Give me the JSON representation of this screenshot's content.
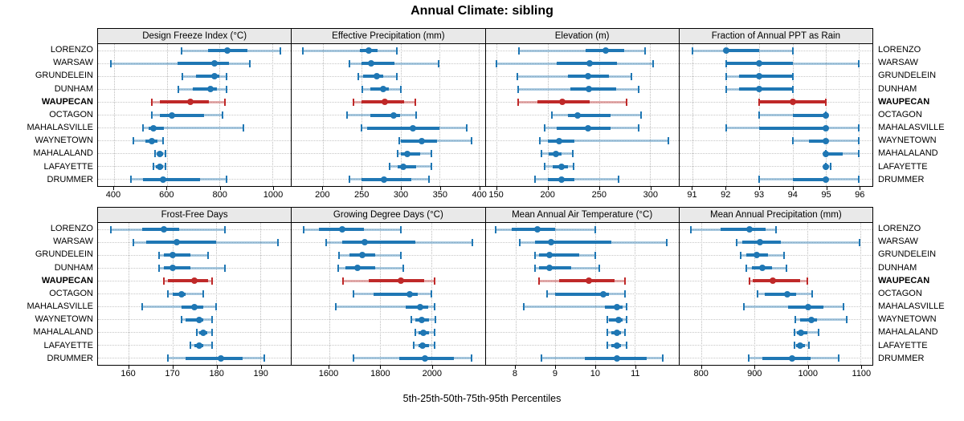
{
  "title": "Annual Climate: sibling",
  "footer": "5th-25th-50th-75th-95th Percentiles",
  "row_labels": [
    "LORENZO",
    "WARSAW",
    "GRUNDELEIN",
    "DUNHAM",
    "WAUPECAN",
    "OCTAGON",
    "MAHALASVILLE",
    "WAYNETOWN",
    "MAHALALAND",
    "LAFAYETTE",
    "DRUMMER"
  ],
  "highlight_row": "WAUPECAN",
  "colors": {
    "series": "#1f77b4",
    "highlight": "#bf2929",
    "header_bg": "#e9e9e9",
    "grid": "#c6c6c6"
  },
  "percentile_levels": [
    5,
    25,
    50,
    75,
    95
  ],
  "chart_data": [
    {
      "type": "dotplot-percentiles",
      "title": "Design Freeze Index (°C)",
      "grid_row": 0,
      "grid_col": 0,
      "xlim": [
        340,
        1070
      ],
      "ticks": [
        400,
        600,
        800,
        1000
      ],
      "tick_labels": [
        "400",
        "600",
        "800",
        "1000"
      ],
      "values": [
        [
          655,
          755,
          830,
          905,
          1030
        ],
        [
          390,
          640,
          780,
          835,
          915
        ],
        [
          660,
          710,
          780,
          800,
          825
        ],
        [
          645,
          700,
          765,
          790,
          825
        ],
        [
          545,
          575,
          690,
          760,
          820
        ],
        [
          545,
          575,
          620,
          740,
          810
        ],
        [
          510,
          530,
          550,
          590,
          890
        ],
        [
          475,
          520,
          545,
          565,
          585
        ],
        [
          555,
          565,
          575,
          585,
          595
        ],
        [
          550,
          560,
          575,
          585,
          595
        ],
        [
          465,
          510,
          585,
          725,
          825
        ]
      ]
    },
    {
      "type": "dotplot-percentiles",
      "title": "Effective Precipitation (mm)",
      "grid_row": 0,
      "grid_col": 1,
      "xlim": [
        160,
        408
      ],
      "ticks": [
        200,
        250,
        300,
        350,
        400
      ],
      "tick_labels": [
        "200",
        "250",
        "300",
        "350",
        "400"
      ],
      "values": [
        [
          174,
          247,
          259,
          270,
          295
        ],
        [
          234,
          250,
          262,
          292,
          349
        ],
        [
          245,
          252,
          269,
          277,
          295
        ],
        [
          251,
          261,
          277,
          285,
          300
        ],
        [
          239,
          250,
          279,
          304,
          319
        ],
        [
          231,
          261,
          291,
          299,
          320
        ],
        [
          250,
          257,
          316,
          350,
          385
        ],
        [
          298,
          300,
          327,
          347,
          391
        ],
        [
          296,
          300,
          308,
          325,
          339
        ],
        [
          286,
          296,
          303,
          320,
          339
        ],
        [
          234,
          250,
          278,
          314,
          336
        ]
      ]
    },
    {
      "type": "dotplot-percentiles",
      "title": "Elevation (m)",
      "grid_row": 0,
      "grid_col": 2,
      "xlim": [
        139,
        328
      ],
      "ticks": [
        150,
        200,
        250,
        300
      ],
      "tick_labels": [
        "150",
        "200",
        "250",
        "300"
      ],
      "values": [
        [
          172,
          237,
          257,
          275,
          295
        ],
        [
          150,
          209,
          241,
          268,
          303
        ],
        [
          170,
          220,
          239,
          260,
          282
        ],
        [
          171,
          222,
          240,
          267,
          289
        ],
        [
          171,
          190,
          214,
          241,
          277
        ],
        [
          204,
          220,
          229,
          261,
          291
        ],
        [
          197,
          209,
          239,
          261,
          289
        ],
        [
          192,
          200,
          211,
          226,
          318
        ],
        [
          194,
          201,
          208,
          213,
          224
        ],
        [
          197,
          205,
          213,
          220,
          225
        ],
        [
          187,
          200,
          213,
          226,
          269
        ]
      ]
    },
    {
      "type": "dotplot-percentiles",
      "title": "Fraction of Annual PPT as Rain",
      "grid_row": 0,
      "grid_col": 3,
      "xlim": [
        90.6,
        96.4
      ],
      "ticks": [
        91,
        92,
        93,
        94,
        95,
        96
      ],
      "tick_labels": [
        "91",
        "92",
        "93",
        "94",
        "95",
        "96"
      ],
      "values": [
        [
          91,
          92,
          92,
          93,
          94
        ],
        [
          92,
          92,
          93,
          94,
          96
        ],
        [
          92,
          92.4,
          93,
          94,
          94
        ],
        [
          92,
          92.4,
          93,
          94,
          94
        ],
        [
          93,
          93,
          94,
          95,
          95
        ],
        [
          93,
          94,
          95,
          95,
          95
        ],
        [
          92,
          93,
          95,
          95,
          96
        ],
        [
          94,
          94.5,
          95,
          95,
          96
        ],
        [
          95,
          95,
          95,
          95.5,
          96
        ],
        [
          95,
          95,
          95,
          95,
          95.15
        ],
        [
          93,
          94,
          95,
          95,
          96
        ]
      ]
    },
    {
      "type": "dotplot-percentiles",
      "title": "Frost-Free Days",
      "grid_row": 1,
      "grid_col": 0,
      "xlim": [
        153,
        197
      ],
      "ticks": [
        160,
        170,
        180,
        190
      ],
      "tick_labels": [
        "160",
        "170",
        "180",
        "190"
      ],
      "values": [
        [
          156,
          163,
          168,
          171.5,
          182
        ],
        [
          161,
          164,
          171,
          180,
          194
        ],
        [
          167,
          168,
          170,
          174,
          178
        ],
        [
          167,
          168,
          170,
          174,
          182
        ],
        [
          168,
          169,
          175,
          178,
          179
        ],
        [
          169,
          170,
          172,
          173,
          177
        ],
        [
          163,
          172,
          175,
          177,
          180
        ],
        [
          172,
          173,
          176,
          177,
          179
        ],
        [
          175.5,
          176,
          177,
          178,
          179
        ],
        [
          174,
          175,
          176,
          177,
          179
        ],
        [
          169,
          173,
          181,
          186,
          191
        ]
      ]
    },
    {
      "type": "dotplot-percentiles",
      "title": "Growing Degree Days (°C)",
      "grid_row": 1,
      "grid_col": 1,
      "xlim": [
        1455,
        2207
      ],
      "ticks": [
        1600,
        1800,
        2000
      ],
      "tick_labels": [
        "1600",
        "1800",
        "2000"
      ],
      "values": [
        [
          1500,
          1560,
          1650,
          1735,
          1880
        ],
        [
          1590,
          1650,
          1740,
          1935,
          2160
        ],
        [
          1640,
          1680,
          1730,
          1780,
          1880
        ],
        [
          1635,
          1665,
          1710,
          1780,
          1890
        ],
        [
          1655,
          1755,
          1880,
          1970,
          2010
        ],
        [
          1695,
          1775,
          1915,
          1945,
          2000
        ],
        [
          1625,
          1900,
          1955,
          1985,
          2010
        ],
        [
          1920,
          1935,
          1960,
          1990,
          2015
        ],
        [
          1937,
          1950,
          1968,
          1990,
          2010
        ],
        [
          1930,
          1950,
          1965,
          1990,
          2010
        ],
        [
          1695,
          1875,
          1975,
          2085,
          2155
        ]
      ]
    },
    {
      "type": "dotplot-percentiles",
      "title": "Mean Annual Air Temperature (°C)",
      "grid_row": 1,
      "grid_col": 2,
      "xlim": [
        7.25,
        12.1
      ],
      "ticks": [
        8,
        9,
        10,
        11
      ],
      "tick_labels": [
        "8",
        "9",
        "10",
        "11"
      ],
      "values": [
        [
          7.5,
          7.9,
          8.55,
          9.0,
          10.0
        ],
        [
          8.1,
          8.5,
          8.9,
          10.4,
          11.8
        ],
        [
          8.5,
          8.6,
          8.85,
          9.6,
          10.0
        ],
        [
          8.5,
          8.6,
          8.85,
          9.4,
          10.1
        ],
        [
          8.6,
          9.1,
          9.85,
          10.5,
          10.75
        ],
        [
          8.8,
          9.0,
          10.2,
          10.35,
          10.75
        ],
        [
          8.2,
          10.25,
          10.55,
          10.7,
          10.8
        ],
        [
          10.3,
          10.35,
          10.6,
          10.7,
          10.8
        ],
        [
          10.3,
          10.4,
          10.55,
          10.65,
          10.75
        ],
        [
          10.3,
          10.4,
          10.55,
          10.65,
          10.8
        ],
        [
          8.65,
          9.75,
          10.55,
          11.3,
          11.7
        ]
      ]
    },
    {
      "type": "dotplot-percentiles",
      "title": "Mean Annual Precipitation (mm)",
      "grid_row": 1,
      "grid_col": 3,
      "xlim": [
        758,
        1122
      ],
      "ticks": [
        800,
        900,
        1000,
        1100
      ],
      "tick_labels": [
        "800",
        "900",
        "1000",
        "1100"
      ],
      "values": [
        [
          780,
          835,
          890,
          920,
          940
        ],
        [
          866,
          877,
          910,
          950,
          1098
        ],
        [
          874,
          884,
          904,
          925,
          955
        ],
        [
          884,
          894,
          915,
          933,
          960
        ],
        [
          890,
          897,
          934,
          986,
          1000
        ],
        [
          905,
          919,
          961,
          978,
          1009
        ],
        [
          880,
          963,
          1001,
          1029,
          1068
        ],
        [
          976,
          986,
          1007,
          1017,
          1073
        ],
        [
          975,
          980,
          987,
          1000,
          1020
        ],
        [
          975,
          978,
          985,
          995,
          1002
        ],
        [
          889,
          914,
          971,
          1006,
          1059
        ]
      ]
    }
  ]
}
